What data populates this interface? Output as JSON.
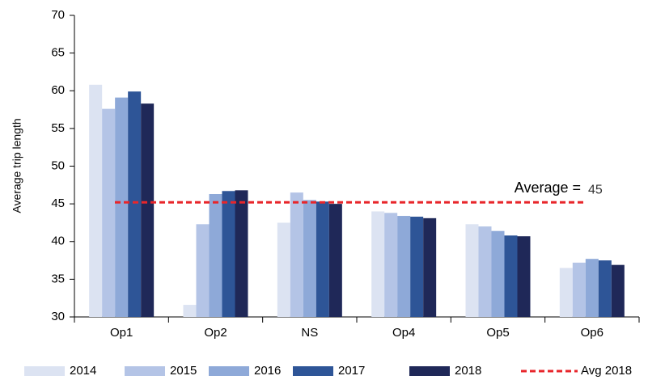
{
  "chart_data": {
    "type": "bar",
    "y_label": "Average trip length",
    "categories": [
      "Op1",
      "Op2",
      "NS",
      "Op4",
      "Op5",
      "Op6"
    ],
    "series": [
      {
        "name": "2014",
        "color": "#dce3f2",
        "values": [
          60.8,
          31.6,
          42.5,
          44.0,
          42.3,
          36.5
        ]
      },
      {
        "name": "2015",
        "color": "#b4c4e6",
        "values": [
          57.6,
          42.3,
          46.5,
          43.8,
          42.0,
          37.2
        ]
      },
      {
        "name": "2016",
        "color": "#8ea9d8",
        "values": [
          59.1,
          46.3,
          45.5,
          43.4,
          41.4,
          37.7
        ]
      },
      {
        "name": "2017",
        "color": "#2e5597",
        "values": [
          59.9,
          46.7,
          45.3,
          43.3,
          40.8,
          37.5
        ]
      },
      {
        "name": "2018",
        "color": "#1f2858",
        "values": [
          58.3,
          46.8,
          45.0,
          43.1,
          40.7,
          36.9
        ]
      }
    ],
    "average_line": {
      "name": "Avg 2018",
      "color": "#e8262b",
      "value": 45.2,
      "value_label": "45",
      "annotation": "Average ="
    },
    "ylim": [
      30,
      70
    ],
    "yticks": [
      30,
      35,
      40,
      45,
      50,
      55,
      60,
      65,
      70
    ]
  }
}
